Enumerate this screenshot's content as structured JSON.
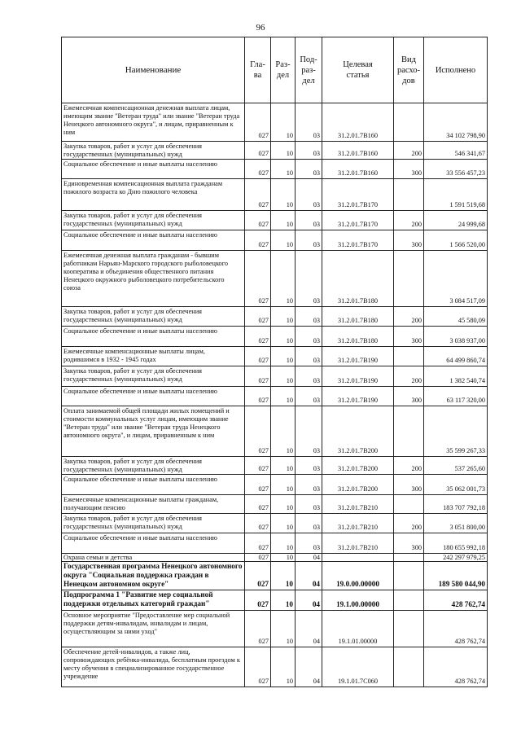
{
  "page_number": "96",
  "headers": {
    "name": "Наименование",
    "glava": "Гла-\nва",
    "razdel": "Раз-\nдел",
    "podrazdel": "Под-\nраз-\nдел",
    "target": "Целевая\nстатья",
    "vid": "Вид\nрасхо-\nдов",
    "done": "Исполнено"
  },
  "rows": [
    {
      "name": "Ежемесячная компенсационная денежная выплата лицам, имеющим звание \"Ветеран труда\" или звание \"Ветеран труда Ненецкого автономного округа\", и лицам, приравненным к ним",
      "glava": "027",
      "razdel": "10",
      "podrazdel": "03",
      "target": "31.2.01.7В160",
      "vid": "",
      "done": "34 102 798,90",
      "bold": false
    },
    {
      "name": "Закупка товаров, работ и услуг для обеспечения государственных (муниципальных) нужд",
      "glava": "027",
      "razdel": "10",
      "podrazdel": "03",
      "target": "31.2.01.7В160",
      "vid": "200",
      "done": "546 341,67",
      "bold": false
    },
    {
      "name": "Социальное обеспечение и иные выплаты населению",
      "glava": "027",
      "razdel": "10",
      "podrazdel": "03",
      "target": "31.2.01.7В160",
      "vid": "300",
      "done": "33 556 457,23",
      "bold": false
    },
    {
      "name": "Единовременная компенсационная выплата гражданам пожилого возраста ко Дню пожилого человека",
      "glava": "027",
      "razdel": "10",
      "podrazdel": "03",
      "target": "31.2.01.7В170",
      "vid": "",
      "done": "1 591 519,68",
      "bold": false
    },
    {
      "name": "Закупка товаров, работ и услуг для обеспечения государственных (муниципальных) нужд",
      "glava": "027",
      "razdel": "10",
      "podrazdel": "03",
      "target": "31.2.01.7В170",
      "vid": "200",
      "done": "24 999,68",
      "bold": false
    },
    {
      "name": "Социальное обеспечение и иные выплаты населению",
      "glava": "027",
      "razdel": "10",
      "podrazdel": "03",
      "target": "31.2.01.7В170",
      "vid": "300",
      "done": "1 566 520,00",
      "bold": false
    },
    {
      "name": "Ежемесячная денежная выплата гражданам - бывшим работникам Нарьян-Марского городского рыболовецкого кооператива и объединения общественного питания Ненецкого окружного рыболовецкого потребительского союза",
      "glava": "027",
      "razdel": "10",
      "podrazdel": "03",
      "target": "31.2.01.7В180",
      "vid": "",
      "done": "3 084 517,09",
      "bold": false
    },
    {
      "name": "Закупка товаров, работ и услуг для обеспечения государственных (муниципальных) нужд",
      "glava": "027",
      "razdel": "10",
      "podrazdel": "03",
      "target": "31.2.01.7В180",
      "vid": "200",
      "done": "45 580,09",
      "bold": false
    },
    {
      "name": "Социальное обеспечение и иные выплаты населению",
      "glava": "027",
      "razdel": "10",
      "podrazdel": "03",
      "target": "31.2.01.7В180",
      "vid": "300",
      "done": "3 038 937,00",
      "bold": false
    },
    {
      "name": "Ежемесячные компенсационные выплаты лицам, родившимся в 1932 - 1945 годах",
      "glava": "027",
      "razdel": "10",
      "podrazdel": "03",
      "target": "31.2.01.7В190",
      "vid": "",
      "done": "64 499 860,74",
      "bold": false
    },
    {
      "name": "Закупка товаров, работ и услуг для обеспечения государственных (муниципальных) нужд",
      "glava": "027",
      "razdel": "10",
      "podrazdel": "03",
      "target": "31.2.01.7В190",
      "vid": "200",
      "done": "1 382 540,74",
      "bold": false
    },
    {
      "name": "Социальное обеспечение и иные выплаты населению",
      "glava": "027",
      "razdel": "10",
      "podrazdel": "03",
      "target": "31.2.01.7В190",
      "vid": "300",
      "done": "63 117 320,00",
      "bold": false
    },
    {
      "name": "Оплата занимаемой общей площади жилых помещений и стоимости коммунальных услуг лицам, имеющим звание \"Ветеран труда\" или звание \"Ветеран труда Ненецкого автономного округа\", и лицам, приравненным к ним",
      "glava": "027",
      "razdel": "10",
      "podrazdel": "03",
      "target": "31.2.01.7В200",
      "vid": "",
      "done": "35 599 267,33",
      "bold": false
    },
    {
      "name": "Закупка товаров, работ и услуг для обеспечения государственных (муниципальных) нужд",
      "glava": "027",
      "razdel": "10",
      "podrazdel": "03",
      "target": "31.2.01.7В200",
      "vid": "200",
      "done": "537 265,60",
      "bold": false
    },
    {
      "name": "Социальное обеспечение и иные выплаты населению",
      "glava": "027",
      "razdel": "10",
      "podrazdel": "03",
      "target": "31.2.01.7В200",
      "vid": "300",
      "done": "35 062 001,73",
      "bold": false
    },
    {
      "name": "Ежемесячные компенсационные выплаты гражданам, получающим пенсию",
      "glava": "027",
      "razdel": "10",
      "podrazdel": "03",
      "target": "31.2.01.7В210",
      "vid": "",
      "done": "183 707 792,18",
      "bold": false
    },
    {
      "name": "Закупка товаров, работ и услуг для обеспечения государственных (муниципальных) нужд",
      "glava": "027",
      "razdel": "10",
      "podrazdel": "03",
      "target": "31.2.01.7В210",
      "vid": "200",
      "done": "3 051 800,00",
      "bold": false
    },
    {
      "name": "Социальное обеспечение и иные выплаты населению",
      "glava": "027",
      "razdel": "10",
      "podrazdel": "03",
      "target": "31.2.01.7В210",
      "vid": "300",
      "done": "180 655 992,18",
      "bold": false
    },
    {
      "name": "Охрана семьи и детства",
      "glava": "027",
      "razdel": "10",
      "podrazdel": "04",
      "target": "",
      "vid": "",
      "done": "242 297 979,25",
      "bold": false
    },
    {
      "name": "Государственная программа Ненецкого автономного округа \"Социальная поддержка граждан в Ненецком автономном округе\"",
      "glava": "027",
      "razdel": "10",
      "podrazdel": "04",
      "target": "19.0.00.00000",
      "vid": "",
      "done": "189 580 044,90",
      "bold": true
    },
    {
      "name": "Подпрограмма 1 \"Развитие мер социальной поддержки отдельных категорий граждан\"",
      "glava": "027",
      "razdel": "10",
      "podrazdel": "04",
      "target": "19.1.00.00000",
      "vid": "",
      "done": "428 762,74",
      "bold": true
    },
    {
      "name": "Основное мероприятие \"Предоставление мер социальной поддержки детям-инвалидам, инвалидам и лицам, осуществляющим за ними уход\"",
      "glava": "027",
      "razdel": "10",
      "podrazdel": "04",
      "target": "19.1.01.00000",
      "vid": "",
      "done": "428 762,74",
      "bold": false
    },
    {
      "name": "Обеспечение детей-инвалидов, а также лиц, сопровождающих ребёнка-инвалида, бесплатным проездом к месту обучения в специализированное государственное учреждение",
      "glava": "027",
      "razdel": "10",
      "podrazdel": "04",
      "target": "19.1.01.7С060",
      "vid": "",
      "done": "428 762,74",
      "bold": false
    }
  ]
}
